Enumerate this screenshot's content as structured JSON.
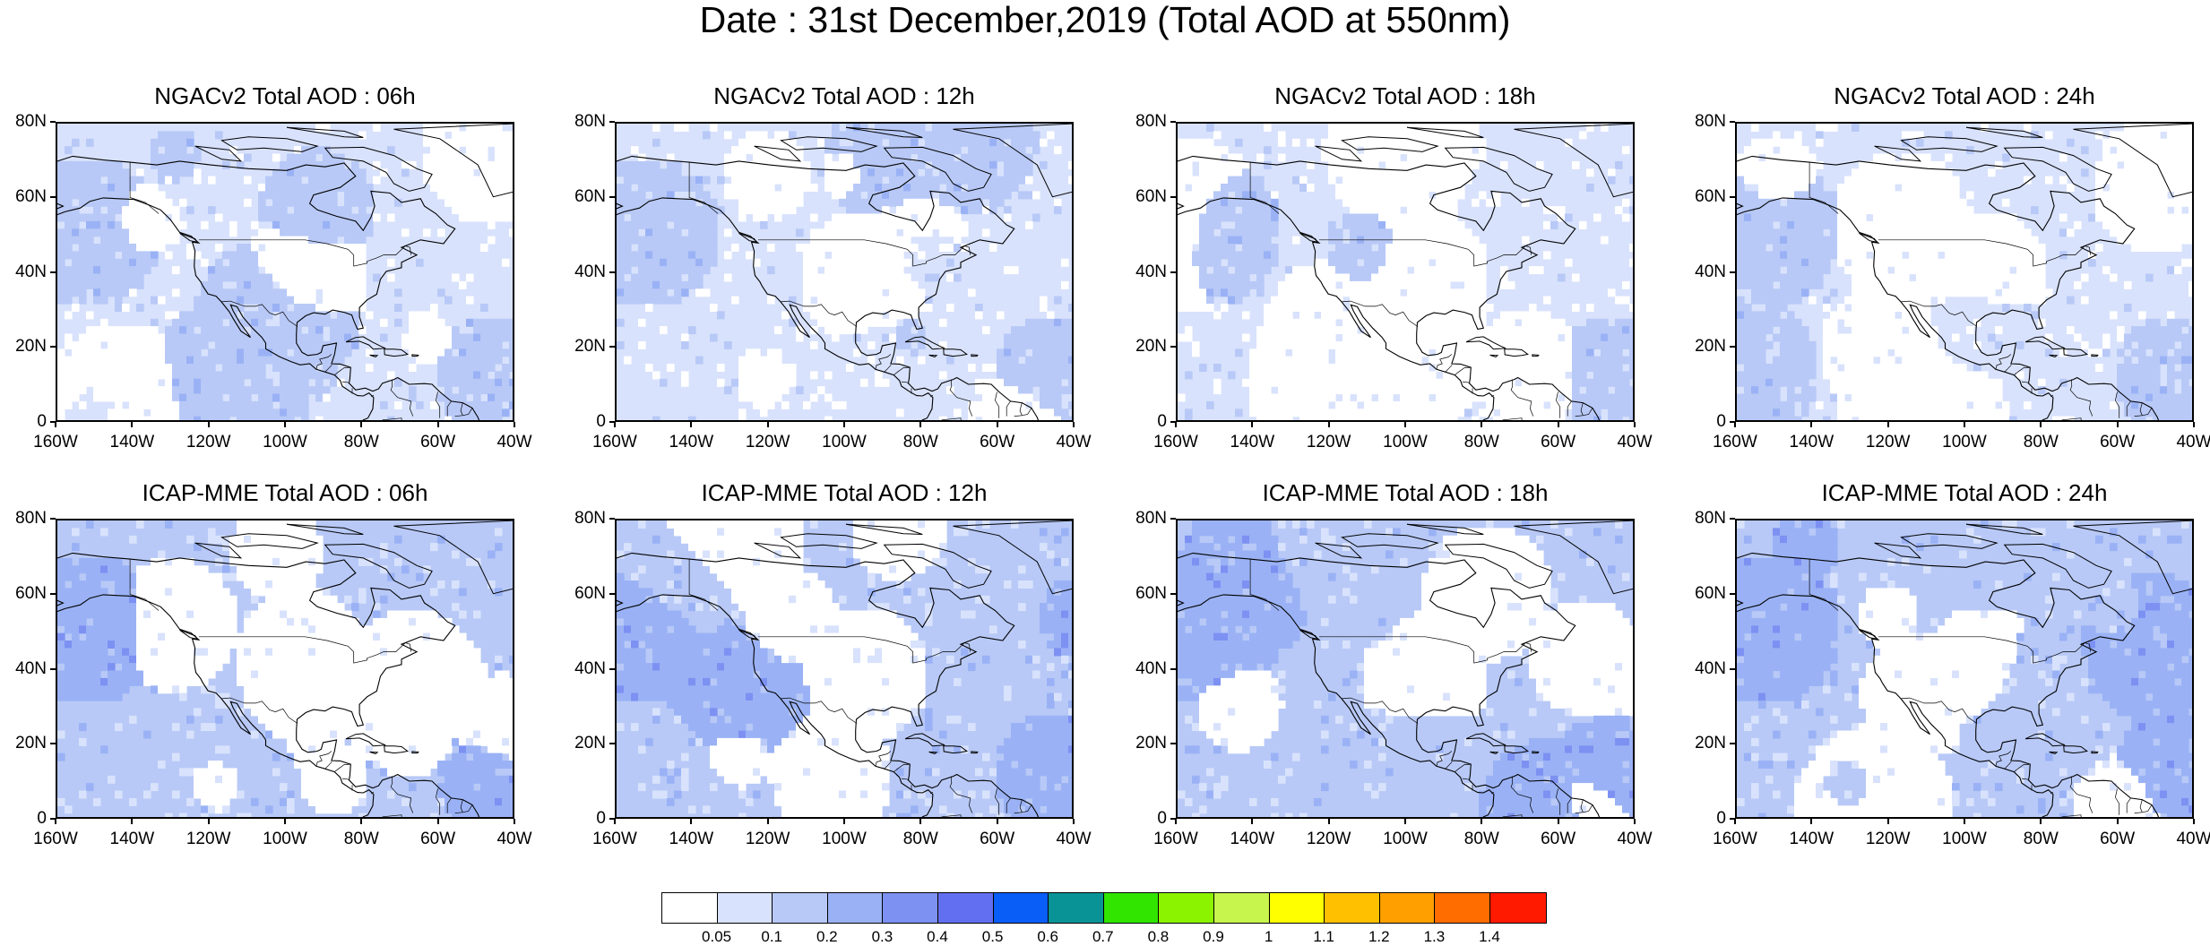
{
  "title": "Date : 31st December,2019 (Total AOD at 550nm)",
  "axis_ticks": {
    "lat_labels": [
      "80N",
      "60N",
      "40N",
      "20N",
      "0"
    ],
    "lon_labels": [
      "160W",
      "140W",
      "120W",
      "100W",
      "80W",
      "60W",
      "40W"
    ]
  },
  "map_extent": {
    "lon_min": -160,
    "lon_max": -40,
    "lat_min": 0,
    "lat_max": 80
  },
  "panels": [
    {
      "title": "NGACv2 Total AOD : 06h",
      "model": "NGACv2",
      "hour": "06h",
      "dominant_level": 1
    },
    {
      "title": "NGACv2 Total AOD : 12h",
      "model": "NGACv2",
      "hour": "12h",
      "dominant_level": 1
    },
    {
      "title": "NGACv2 Total AOD : 18h",
      "model": "NGACv2",
      "hour": "18h",
      "dominant_level": 1
    },
    {
      "title": "NGACv2 Total AOD : 24h",
      "model": "NGACv2",
      "hour": "24h",
      "dominant_level": 1
    },
    {
      "title": "ICAP-MME Total AOD : 06h",
      "model": "ICAP-MME",
      "hour": "06h",
      "dominant_level": 2
    },
    {
      "title": "ICAP-MME Total AOD : 12h",
      "model": "ICAP-MME",
      "hour": "12h",
      "dominant_level": 2
    },
    {
      "title": "ICAP-MME Total AOD : 18h",
      "model": "ICAP-MME",
      "hour": "18h",
      "dominant_level": 2
    },
    {
      "title": "ICAP-MME Total AOD : 24h",
      "model": "ICAP-MME",
      "hour": "24h",
      "dominant_level": 2
    }
  ],
  "colorbar": {
    "labels": [
      "0.05",
      "0.1",
      "0.2",
      "0.3",
      "0.4",
      "0.5",
      "0.6",
      "0.7",
      "0.8",
      "0.9",
      "1",
      "1.1",
      "1.2",
      "1.3",
      "1.4"
    ],
    "colors": [
      "#ffffff",
      "#d8e2fc",
      "#b8c9f7",
      "#9ab2f5",
      "#7d91f2",
      "#626ff0",
      "#0a5ef8",
      "#0a9396",
      "#31e500",
      "#8bf300",
      "#c8f44e",
      "#ffff00",
      "#ffc000",
      "#ffa000",
      "#ff6c00",
      "#ff1a00"
    ]
  }
}
